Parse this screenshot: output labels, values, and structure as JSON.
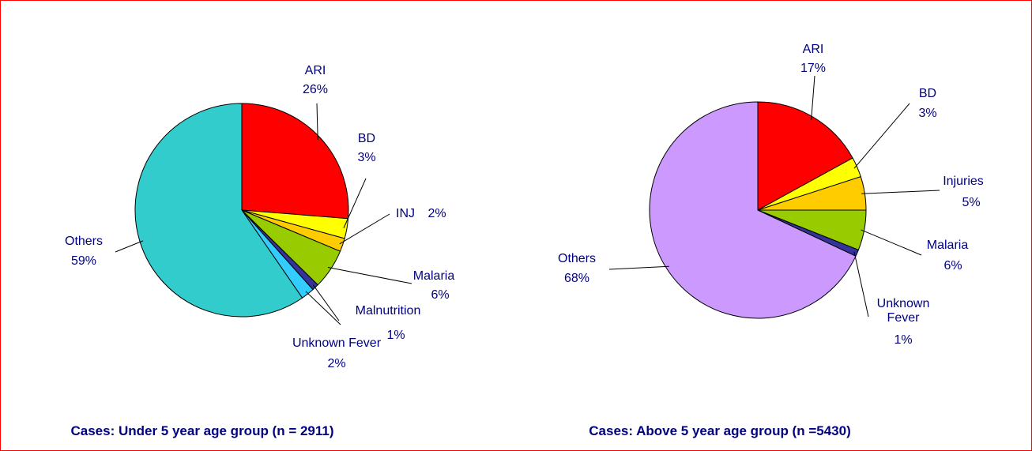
{
  "chart_data": [
    {
      "type": "pie",
      "title": "Cases: Under 5 year age group (n = 2911)",
      "categories": [
        "ARI",
        "BD",
        "INJ",
        "Malaria",
        "Malnutrition",
        "Unknown Fever",
        "Others"
      ],
      "values": [
        26,
        3,
        2,
        6,
        1,
        2,
        59
      ],
      "value_labels": [
        "26%",
        "3%",
        "2%",
        "6%",
        "1%",
        "2%",
        "59%"
      ],
      "colors": [
        "#ff0000",
        "#ffff00",
        "#ffcc00",
        "#99cc00",
        "#333399",
        "#33ccff",
        "#33cccc"
      ]
    },
    {
      "type": "pie",
      "title": "Cases: Above 5 year age group (n =5430)",
      "categories": [
        "ARI",
        "BD",
        "Injuries",
        "Malaria",
        "Unknown Fever",
        "Others"
      ],
      "values": [
        17,
        3,
        5,
        6,
        1,
        68
      ],
      "value_labels": [
        "17%",
        "3%",
        "5%",
        "6%",
        "1%",
        "68%"
      ],
      "colors": [
        "#ff0000",
        "#ffff00",
        "#ffcc00",
        "#99cc00",
        "#333399",
        "#cc99ff"
      ]
    }
  ]
}
